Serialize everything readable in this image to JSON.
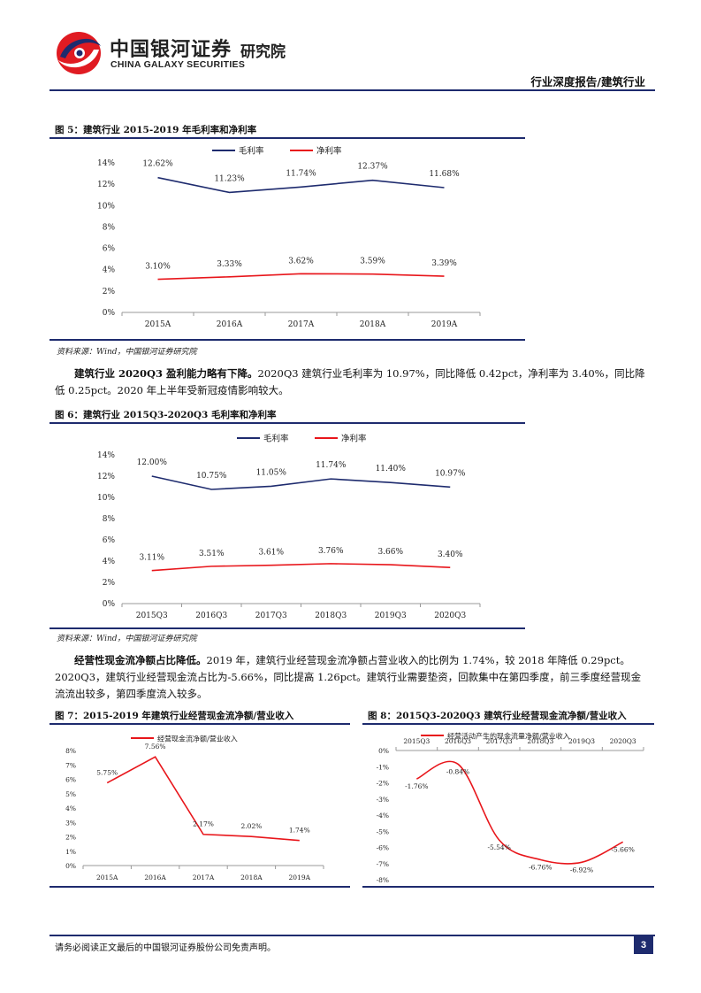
{
  "header": {
    "logo_cn": "中国银河证券",
    "logo_en": "CHINA GALAXY SECURITIES",
    "logo_sub": "研究院",
    "report_type": "行业深度报告/建筑行业"
  },
  "fig5": {
    "title": "图 5：建筑行业 2015-2019 年毛利率和净利率",
    "source": "资料来源：Wind，中国银河证券研究院"
  },
  "para1": {
    "bold": "建筑行业 2020Q3 盈利能力略有下降。",
    "text": "2020Q3 建筑行业毛利率为 10.97%，同比降低 0.42pct，净利率为 3.40%，同比降低 0.25pct。2020 年上半年受新冠疫情影响较大。"
  },
  "fig6": {
    "title": "图 6：建筑行业 2015Q3-2020Q3 毛利率和净利率",
    "source": "资料来源：Wind，中国银河证券研究院"
  },
  "para2": {
    "bold": "经营性现金流净额占比降低。",
    "text": "2019 年，建筑行业经营现金流净额占营业收入的比例为 1.74%，较 2018 年降低 0.29pct。2020Q3，建筑行业经营现金流占比为-5.66%，同比提高 1.26pct。建筑行业需要垫资，回款集中在第四季度，前三季度经营现金流流出较多，第四季度流入较多。"
  },
  "fig7": {
    "title": "图 7：2015-2019 年建筑行业经营现金流净额/营业收入"
  },
  "fig8": {
    "title": "图 8：2015Q3-2020Q3 建筑行业经营现金流净额/营业收入"
  },
  "footer": {
    "disclaimer": "请务必阅读正文最后的中国银河证券股份公司免责声明。",
    "page": "3"
  },
  "colors": {
    "navy": "#1e2b6e",
    "red": "#e8161b"
  },
  "chart_data": [
    {
      "type": "line",
      "categories": [
        "2015A",
        "2016A",
        "2017A",
        "2018A",
        "2019A"
      ],
      "series": [
        {
          "name": "毛利率",
          "values": [
            12.62,
            11.23,
            11.74,
            12.37,
            11.68
          ],
          "labels": [
            "12.62%",
            "11.23%",
            "11.74%",
            "12.37%",
            "11.68%"
          ],
          "color": "#1e2b6e"
        },
        {
          "name": "净利率",
          "values": [
            3.1,
            3.33,
            3.62,
            3.59,
            3.39
          ],
          "labels": [
            "3.10%",
            "3.33%",
            "3.62%",
            "3.59%",
            "3.39%"
          ],
          "color": "#e8161b"
        }
      ],
      "ylim": [
        0,
        14
      ],
      "yticks": [
        "0%",
        "2%",
        "4%",
        "6%",
        "8%",
        "10%",
        "12%",
        "14%"
      ],
      "legend": "top"
    },
    {
      "type": "line",
      "categories": [
        "2015Q3",
        "2016Q3",
        "2017Q3",
        "2018Q3",
        "2019Q3",
        "2020Q3"
      ],
      "series": [
        {
          "name": "毛利率",
          "values": [
            12.0,
            10.75,
            11.05,
            11.74,
            11.4,
            10.97
          ],
          "labels": [
            "12.00%",
            "10.75%",
            "11.05%",
            "11.74%",
            "11.40%",
            "10.97%"
          ],
          "color": "#1e2b6e"
        },
        {
          "name": "净利率",
          "values": [
            3.11,
            3.51,
            3.61,
            3.76,
            3.66,
            3.4
          ],
          "labels": [
            "3.11%",
            "3.51%",
            "3.61%",
            "3.76%",
            "3.66%",
            "3.40%"
          ],
          "color": "#e8161b"
        }
      ],
      "ylim": [
        0,
        14
      ],
      "yticks": [
        "0%",
        "2%",
        "4%",
        "6%",
        "8%",
        "10%",
        "12%",
        "14%"
      ],
      "legend": "top"
    },
    {
      "type": "line",
      "categories": [
        "2015A",
        "2016A",
        "2017A",
        "2018A",
        "2019A"
      ],
      "series": [
        {
          "name": "经营现金流净额/营业收入",
          "values": [
            5.75,
            7.56,
            2.17,
            2.02,
            1.74
          ],
          "labels": [
            "5.75%",
            "7.56%",
            "2.17%",
            "2.02%",
            "1.74%"
          ],
          "color": "#e8161b"
        }
      ],
      "ylim": [
        0,
        8
      ],
      "yticks": [
        "0%",
        "1%",
        "2%",
        "3%",
        "4%",
        "5%",
        "6%",
        "7%",
        "8%"
      ],
      "legend": "top"
    },
    {
      "type": "line",
      "categories": [
        "2015Q3",
        "2016Q3",
        "2017Q3",
        "2018Q3",
        "2019Q3",
        "2020Q3"
      ],
      "series": [
        {
          "name": "经营活动产生的现金流量净额/营业收入",
          "values": [
            -1.76,
            -0.84,
            -5.54,
            -6.76,
            -6.92,
            -5.66
          ],
          "labels": [
            "-1.76%",
            "-0.84%",
            "-5.54%",
            "-6.76%",
            "-6.92%",
            "-5.66%"
          ],
          "color": "#e8161b"
        }
      ],
      "ylim": [
        -8,
        0
      ],
      "yticks": [
        "0%",
        "-1%",
        "-2%",
        "-3%",
        "-4%",
        "-5%",
        "-6%",
        "-7%",
        "-8%"
      ],
      "legend": "top"
    }
  ]
}
